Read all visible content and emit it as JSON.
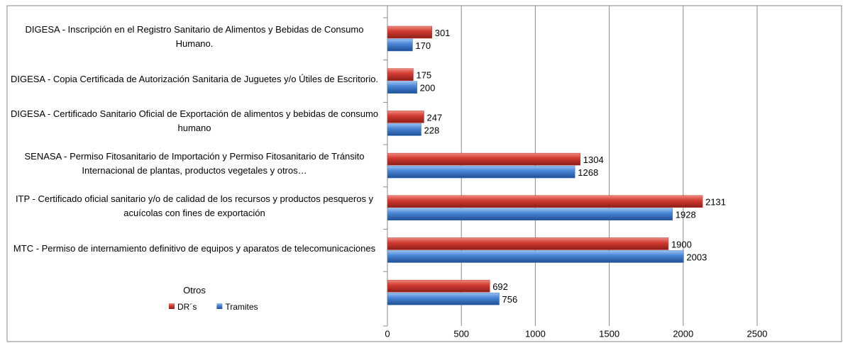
{
  "chart_data": {
    "type": "bar",
    "orientation": "horizontal",
    "categories": [
      "DIGESA - Inscripción en el Registro Sanitario de Alimentos y Bebidas de Consumo Humano.",
      "DIGESA - Copia Certificada de Autorización Sanitaria de Juguetes y/o Útiles de Escritorio.",
      "DIGESA - Certificado Sanitario Oficial de Exportación de alimentos y bebidas de consumo humano",
      "SENASA - Permiso Fitosanitario de Importación y Permiso Fitosanitario de Tránsito Internacional de plantas, productos vegetales y otros…",
      "ITP - Certificado oficial sanitario y/o de calidad de los recursos y productos pesqueros y acuícolas con fines de exportación",
      "MTC - Permiso de internamiento definitivo de equipos y aparatos de telecomunicaciones",
      "Otros"
    ],
    "series": [
      {
        "name": "DR´s",
        "color": "#c0392b",
        "values": [
          301,
          175,
          247,
          1304,
          2131,
          1900,
          692
        ]
      },
      {
        "name": "Tramites",
        "color": "#3f78c8",
        "values": [
          170,
          200,
          228,
          1268,
          1928,
          2003,
          756
        ]
      }
    ],
    "xlim": [
      0,
      2500
    ],
    "xticks": [
      0,
      500,
      1000,
      1500,
      2000,
      2500
    ],
    "grid": true,
    "legend": "bottom-left"
  }
}
